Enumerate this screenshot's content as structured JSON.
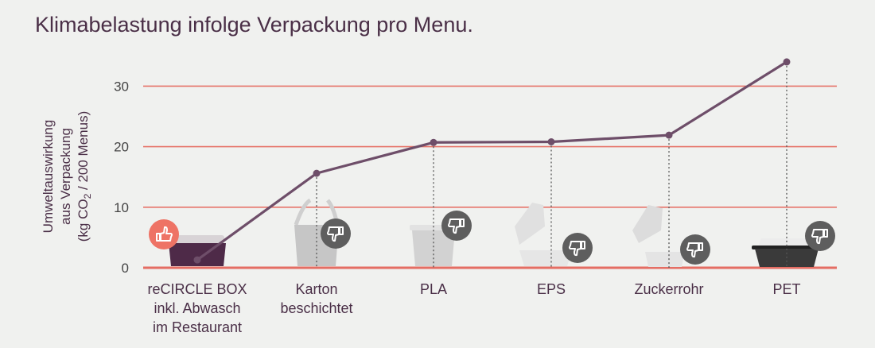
{
  "chart_data": {
    "type": "line",
    "title": "Klimabelastung infolge Verpackung pro Menu.",
    "ylabel": {
      "line1": "Umweltauswirkung",
      "line2": "aus Verpackung",
      "line3_pre": "(kg CO",
      "line3_sub": "2",
      "line3_post": " / 200 Menus)"
    },
    "ylim": [
      0,
      35
    ],
    "yticks": [
      "0",
      "10",
      "20",
      "30"
    ],
    "categories": [
      [
        "reCIRCLE BOX",
        "inkl. Abwasch",
        "im Restaurant"
      ],
      [
        "Karton",
        "beschichtet"
      ],
      [
        "PLA"
      ],
      [
        "EPS"
      ],
      [
        "Zuckerrohr"
      ],
      [
        "PET"
      ]
    ],
    "values": [
      1.3,
      15.6,
      20.7,
      20.8,
      21.9,
      34.0
    ],
    "ratings": [
      "thumbs-up",
      "thumbs-down",
      "thumbs-down",
      "thumbs-down",
      "thumbs-down",
      "thumbs-down"
    ],
    "grid": true,
    "colors": {
      "line": "#6e4e69",
      "grid": "#e6746a",
      "baseline": "#e56d63",
      "thumb_up_bg": "#ee7365",
      "thumb_down_bg": "#5e5e5e",
      "title": "#4a2f47"
    }
  }
}
